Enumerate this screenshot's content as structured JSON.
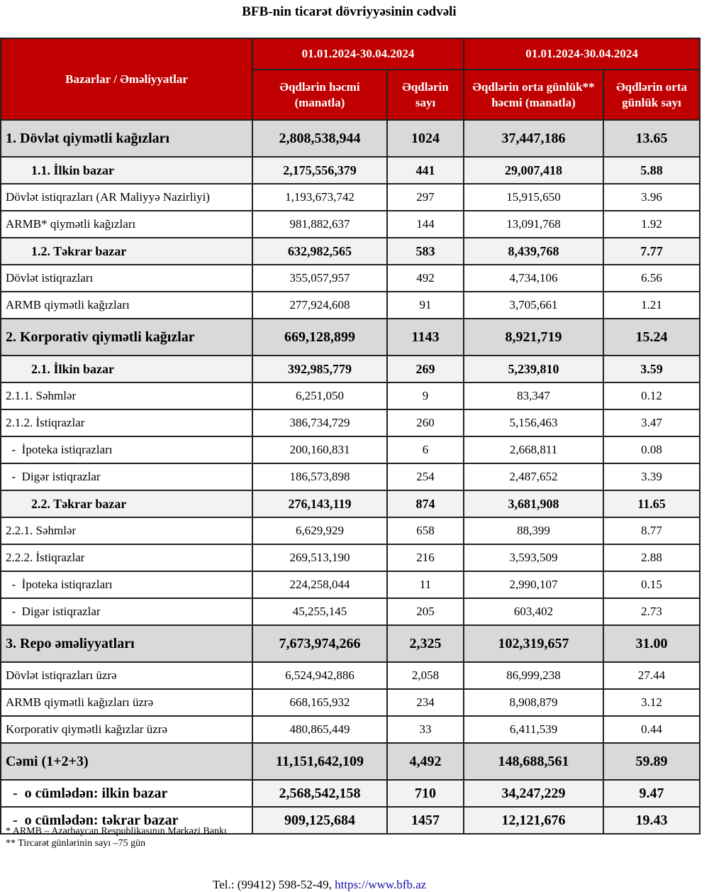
{
  "title": "BFB-nin ticarət dövriyyəsinin cədvəli",
  "header": {
    "col0": "Bazarlar / Əməliyyatlar",
    "period1": "01.01.2024-30.04.2024",
    "period2": "01.01.2024-30.04.2024",
    "col1": "Əqdlərin həcmi (manatla)",
    "col2": "Əqdlərin sayı",
    "col3": "Əqdlərin orta günlük** həcmi (manatla)",
    "col4": "Əqdlərin orta günlük sayı"
  },
  "colors": {
    "header_bg": "#c00000",
    "group_bg": "#d9d9d9",
    "sub_bg": "#f2f2f2"
  },
  "rows": [
    {
      "type": "group",
      "label": "1. Dövlət qiymətli kağızları",
      "values": [
        "2,808,538,944",
        "1024",
        "37,447,186",
        "13.65"
      ]
    },
    {
      "type": "sub",
      "label": "1.1. İlkin bazar",
      "values": [
        "2,175,556,379",
        "441",
        "29,007,418",
        "5.88"
      ]
    },
    {
      "type": "plain",
      "label": "Dövlət istiqrazları (AR Maliyyə Nazirliyi)",
      "values": [
        "1,193,673,742",
        "297",
        "15,915,650",
        "3.96"
      ]
    },
    {
      "type": "plain",
      "label": "ARMB* qiymətli kağızları",
      "values": [
        "981,882,637",
        "144",
        "13,091,768",
        "1.92"
      ]
    },
    {
      "type": "sub",
      "label": "1.2. Təkrar bazar",
      "values": [
        "632,982,565",
        "583",
        "8,439,768",
        "7.77"
      ]
    },
    {
      "type": "plain",
      "label": "Dövlət istiqrazları",
      "values": [
        "355,057,957",
        "492",
        "4,734,106",
        "6.56"
      ]
    },
    {
      "type": "plain",
      "label": "ARMB qiymətli kağızları",
      "values": [
        "277,924,608",
        "91",
        "3,705,661",
        "1.21"
      ]
    },
    {
      "type": "group",
      "label": "2. Korporativ qiymətli kağızlar",
      "values": [
        "669,128,899",
        "1143",
        "8,921,719",
        "15.24"
      ]
    },
    {
      "type": "sub",
      "label": "2.1. İlkin bazar",
      "values": [
        "392,985,779",
        "269",
        "5,239,810",
        "3.59"
      ]
    },
    {
      "type": "plain",
      "label": "2.1.1. Səhmlər",
      "values": [
        "6,251,050",
        "9",
        "83,347",
        "0.12"
      ]
    },
    {
      "type": "plain",
      "label": "2.1.2. İstiqrazlar",
      "values": [
        "386,734,729",
        "260",
        "5,156,463",
        "3.47"
      ]
    },
    {
      "type": "plain",
      "label": "  -  İpoteka istiqrazları",
      "values": [
        "200,160,831",
        "6",
        "2,668,811",
        "0.08"
      ]
    },
    {
      "type": "plain",
      "label": "  -  Digər istiqrazlar",
      "values": [
        "186,573,898",
        "254",
        "2,487,652",
        "3.39"
      ]
    },
    {
      "type": "sub",
      "label": "2.2. Təkrar bazar",
      "values": [
        "276,143,119",
        "874",
        "3,681,908",
        "11.65"
      ]
    },
    {
      "type": "plain",
      "label": "2.2.1. Səhmlər",
      "values": [
        "6,629,929",
        "658",
        "88,399",
        "8.77"
      ]
    },
    {
      "type": "plain",
      "label": "2.2.2. İstiqrazlar",
      "values": [
        "269,513,190",
        "216",
        "3,593,509",
        "2.88"
      ]
    },
    {
      "type": "plain",
      "label": "  -  İpoteka istiqrazları",
      "values": [
        "224,258,044",
        "11",
        "2,990,107",
        "0.15"
      ]
    },
    {
      "type": "plain",
      "label": "  -  Digər istiqrazlar",
      "values": [
        "45,255,145",
        "205",
        "603,402",
        "2.73"
      ]
    },
    {
      "type": "group",
      "label": "3. Repo əməliyyatları",
      "values": [
        "7,673,974,266",
        "2,325",
        "102,319,657",
        "31.00"
      ]
    },
    {
      "type": "plain",
      "label": "Dövlət istiqrazları üzrə",
      "values": [
        "6,524,942,886",
        "2,058",
        "86,999,238",
        "27.44"
      ]
    },
    {
      "type": "plain",
      "label": "ARMB qiymətli kağızları üzrə",
      "values": [
        "668,165,932",
        "234",
        "8,908,879",
        "3.12"
      ]
    },
    {
      "type": "plain",
      "label": "Korporativ qiymətli kağızlar üzrə",
      "values": [
        "480,865,449",
        "33",
        "6,411,539",
        "0.44"
      ]
    },
    {
      "type": "group",
      "label": "Cəmi (1+2+3)",
      "values": [
        "11,151,642,109",
        "4,492",
        "148,688,561",
        "59.89"
      ]
    },
    {
      "type": "part",
      "label": "  -  o cümlədən: ilkin bazar",
      "values": [
        "2,568,542,158",
        "710",
        "34,247,229",
        "9.47"
      ]
    },
    {
      "type": "part",
      "label": "  -  o cümlədən: təkrar bazar",
      "values": [
        "909,125,684",
        "1457",
        "12,121,676",
        "19.43"
      ]
    }
  ],
  "notes": [
    "* ARMB – Azərbaycan Respublikasının Mərkəzi Bankı",
    "** Tircarət günlərinin sayı –75 gün"
  ],
  "contact": {
    "phone": "Tel.: (99412) 598-52-49,",
    "link": "https://www.bfb.az"
  }
}
